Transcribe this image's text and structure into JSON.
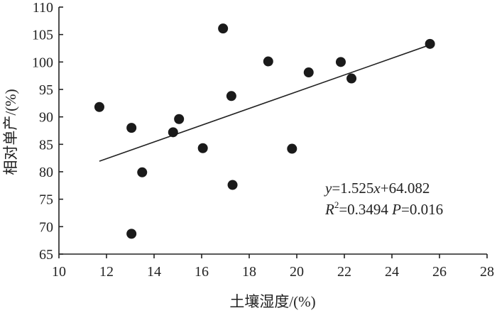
{
  "chart_data": {
    "type": "scatter",
    "xlabel": "土壤湿度/(%)",
    "ylabel": "相对单产/(%)",
    "xlim": [
      10,
      28
    ],
    "ylim": [
      65,
      110
    ],
    "x_ticks": [
      "10",
      "12",
      "14",
      "16",
      "18",
      "20",
      "22",
      "24",
      "26",
      "28"
    ],
    "y_ticks": [
      "65",
      "70",
      "75",
      "80",
      "85",
      "90",
      "95",
      "100",
      "105",
      "110"
    ],
    "grid": false,
    "series": [
      {
        "points": [
          {
            "x": 11.7,
            "y": 91.8
          },
          {
            "x": 13.05,
            "y": 88.0
          },
          {
            "x": 13.05,
            "y": 68.7
          },
          {
            "x": 13.5,
            "y": 79.9
          },
          {
            "x": 14.8,
            "y": 87.2
          },
          {
            "x": 15.05,
            "y": 89.6
          },
          {
            "x": 16.05,
            "y": 84.3
          },
          {
            "x": 16.9,
            "y": 106.1
          },
          {
            "x": 17.25,
            "y": 93.8
          },
          {
            "x": 17.3,
            "y": 77.6
          },
          {
            "x": 18.8,
            "y": 100.1
          },
          {
            "x": 19.8,
            "y": 84.2
          },
          {
            "x": 20.5,
            "y": 98.1
          },
          {
            "x": 21.85,
            "y": 100.0
          },
          {
            "x": 22.3,
            "y": 97.0
          },
          {
            "x": 25.6,
            "y": 103.3
          }
        ]
      }
    ],
    "trendline": {
      "slope": 1.525,
      "intercept": 64.082,
      "x_range": [
        11.7,
        25.6
      ]
    },
    "annotation": {
      "line1": {
        "y": "y",
        "eq": "=1.525",
        "x": "x",
        "rest": "+64.082"
      },
      "line2": {
        "r": "R",
        "sup": "2",
        "r2": "=0.3494 ",
        "p": "P",
        "pval": "=0.016"
      }
    }
  }
}
